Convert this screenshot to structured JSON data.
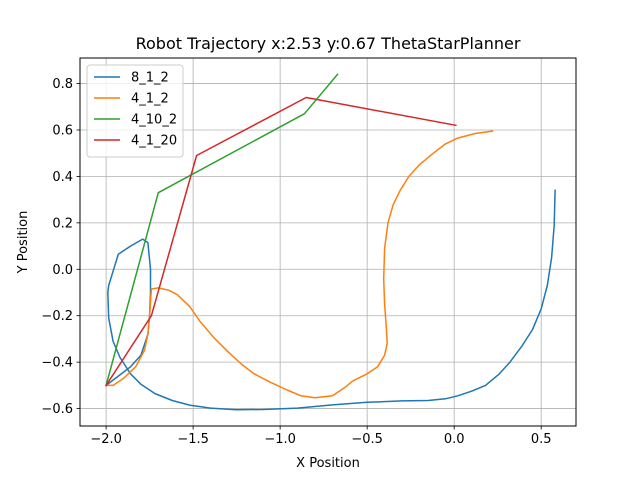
{
  "chart_data": {
    "type": "line",
    "title": "Robot Trajectory x:2.53 y:0.67 ThetaStarPlanner",
    "xlabel": "X Position",
    "ylabel": "Y Position",
    "xlim": [
      -2.15,
      0.7
    ],
    "ylim": [
      -0.675,
      0.91
    ],
    "xticks": [
      -2.0,
      -1.5,
      -1.0,
      -0.5,
      0.0,
      0.5
    ],
    "xtick_labels": [
      "−2.0",
      "−1.5",
      "−1.0",
      "−0.5",
      "0.0",
      "0.5"
    ],
    "yticks": [
      -0.6,
      -0.4,
      -0.2,
      0.0,
      0.2,
      0.4,
      0.6,
      0.8
    ],
    "ytick_labels": [
      "−0.6",
      "−0.4",
      "−0.2",
      "0.0",
      "0.2",
      "0.4",
      "0.6",
      "0.8"
    ],
    "grid": true,
    "legend_position": "top-left",
    "series": [
      {
        "name": "8_1_2",
        "color": "#1f77b4",
        "points": [
          [
            0.58,
            0.34
          ],
          [
            0.575,
            0.19
          ],
          [
            0.56,
            0.05
          ],
          [
            0.535,
            -0.07
          ],
          [
            0.5,
            -0.17
          ],
          [
            0.45,
            -0.26
          ],
          [
            0.39,
            -0.33
          ],
          [
            0.32,
            -0.4
          ],
          [
            0.26,
            -0.45
          ],
          [
            0.18,
            -0.5
          ],
          [
            0.1,
            -0.525
          ],
          [
            0.02,
            -0.545
          ],
          [
            -0.05,
            -0.558
          ],
          [
            -0.15,
            -0.565
          ],
          [
            -0.3,
            -0.567
          ],
          [
            -0.5,
            -0.573
          ],
          [
            -0.7,
            -0.584
          ],
          [
            -0.9,
            -0.598
          ],
          [
            -1.1,
            -0.604
          ],
          [
            -1.25,
            -0.605
          ],
          [
            -1.4,
            -0.598
          ],
          [
            -1.52,
            -0.585
          ],
          [
            -1.62,
            -0.565
          ],
          [
            -1.72,
            -0.535
          ],
          [
            -1.8,
            -0.495
          ],
          [
            -1.86,
            -0.45
          ],
          [
            -1.92,
            -0.38
          ],
          [
            -1.96,
            -0.31
          ],
          [
            -1.985,
            -0.21
          ],
          [
            -1.99,
            -0.1
          ],
          [
            -1.985,
            -0.07
          ],
          [
            -1.93,
            0.065
          ],
          [
            -1.86,
            0.1
          ],
          [
            -1.79,
            0.13
          ],
          [
            -1.76,
            0.115
          ],
          [
            -1.745,
            0.0
          ],
          [
            -1.745,
            -0.1
          ],
          [
            -1.75,
            -0.2
          ],
          [
            -1.76,
            -0.28
          ],
          [
            -1.8,
            -0.37
          ],
          [
            -1.86,
            -0.42
          ],
          [
            -1.93,
            -0.46
          ],
          [
            -2.0,
            -0.5
          ]
        ]
      },
      {
        "name": "4_1_2",
        "color": "#ff7f0e",
        "points": [
          [
            0.22,
            0.595
          ],
          [
            0.12,
            0.585
          ],
          [
            0.02,
            0.565
          ],
          [
            -0.05,
            0.54
          ],
          [
            -0.12,
            0.5
          ],
          [
            -0.2,
            0.45
          ],
          [
            -0.26,
            0.4
          ],
          [
            -0.31,
            0.34
          ],
          [
            -0.35,
            0.28
          ],
          [
            -0.38,
            0.2
          ],
          [
            -0.4,
            0.09
          ],
          [
            -0.405,
            -0.04
          ],
          [
            -0.4,
            -0.15
          ],
          [
            -0.39,
            -0.25
          ],
          [
            -0.385,
            -0.32
          ],
          [
            -0.4,
            -0.37
          ],
          [
            -0.44,
            -0.42
          ],
          [
            -0.5,
            -0.45
          ],
          [
            -0.58,
            -0.48
          ],
          [
            -0.63,
            -0.51
          ],
          [
            -0.7,
            -0.545
          ],
          [
            -0.8,
            -0.553
          ],
          [
            -0.88,
            -0.545
          ],
          [
            -0.96,
            -0.52
          ],
          [
            -1.06,
            -0.485
          ],
          [
            -1.15,
            -0.45
          ],
          [
            -1.22,
            -0.41
          ],
          [
            -1.3,
            -0.355
          ],
          [
            -1.38,
            -0.295
          ],
          [
            -1.46,
            -0.225
          ],
          [
            -1.52,
            -0.16
          ],
          [
            -1.59,
            -0.11
          ],
          [
            -1.64,
            -0.09
          ],
          [
            -1.7,
            -0.08
          ],
          [
            -1.74,
            -0.085
          ],
          [
            -1.75,
            -0.2
          ],
          [
            -1.76,
            -0.28
          ],
          [
            -1.78,
            -0.35
          ],
          [
            -1.83,
            -0.42
          ],
          [
            -1.9,
            -0.47
          ],
          [
            -1.96,
            -0.5
          ],
          [
            -2.0,
            -0.5
          ]
        ]
      },
      {
        "name": "4_10_2",
        "color": "#2ca02c",
        "points": [
          [
            -0.67,
            0.84
          ],
          [
            -0.86,
            0.67
          ],
          [
            -1.7,
            0.33
          ],
          [
            -2.0,
            -0.5
          ]
        ]
      },
      {
        "name": "4_1_20",
        "color": "#d62728",
        "points": [
          [
            0.01,
            0.62
          ],
          [
            -0.85,
            0.74
          ],
          [
            -1.48,
            0.49
          ],
          [
            -1.74,
            -0.2
          ],
          [
            -2.0,
            -0.5
          ]
        ]
      }
    ]
  }
}
